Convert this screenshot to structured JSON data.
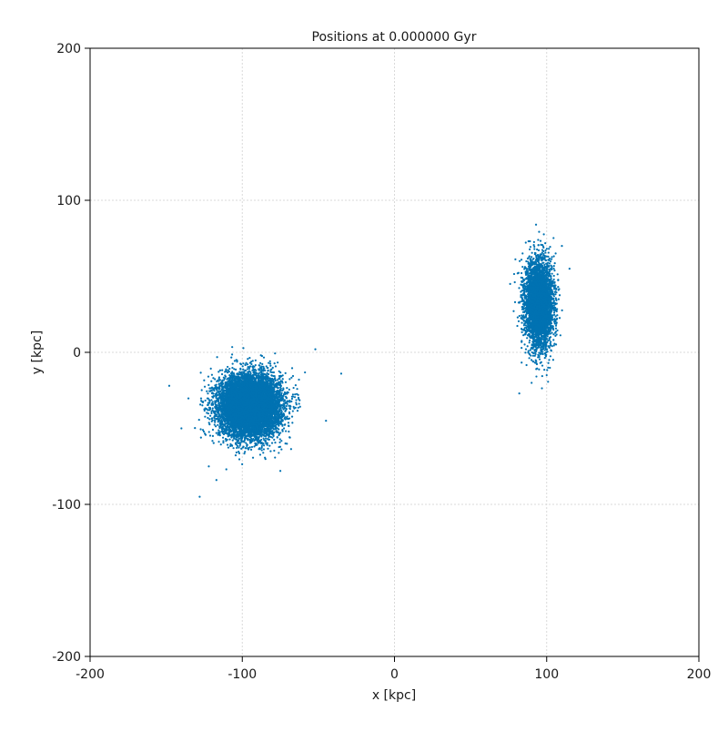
{
  "chart_data": {
    "type": "scatter",
    "title": "Positions at 0.000000 Gyr",
    "xlabel": "x [kpc]",
    "ylabel": "y [kpc]",
    "xlim": [
      -200,
      200
    ],
    "ylim": [
      -200,
      200
    ],
    "xticks": [
      -200,
      -100,
      0,
      100,
      200
    ],
    "yticks": [
      -200,
      -100,
      0,
      100,
      200
    ],
    "xtick_labels": [
      "-200",
      "-100",
      "0",
      "100",
      "200"
    ],
    "ytick_labels": [
      "-200",
      "-100",
      "0",
      "100",
      "200"
    ],
    "grid": true,
    "marker_color": "#0072b2",
    "clusters": [
      {
        "center": [
          -95,
          -35
        ],
        "spread": [
          10,
          10
        ],
        "count": 9000
      },
      {
        "center": [
          95,
          32
        ],
        "spread": [
          4.5,
          14
        ],
        "count": 4500
      }
    ],
    "outliers": [
      {
        "x": -128,
        "y": -95
      },
      {
        "x": -148,
        "y": -22
      },
      {
        "x": -35,
        "y": -14
      },
      {
        "x": -45,
        "y": -45
      },
      {
        "x": 82,
        "y": -27
      },
      {
        "x": 115,
        "y": 55
      },
      {
        "x": -117,
        "y": -84
      },
      {
        "x": -75,
        "y": -78
      },
      {
        "x": -52,
        "y": 2
      },
      {
        "x": -140,
        "y": -50
      },
      {
        "x": -122,
        "y": -75
      },
      {
        "x": 93,
        "y": 84
      },
      {
        "x": 110,
        "y": 70
      },
      {
        "x": 76,
        "y": 45
      },
      {
        "x": 90,
        "y": -5
      },
      {
        "x": 100,
        "y": -15
      }
    ]
  }
}
